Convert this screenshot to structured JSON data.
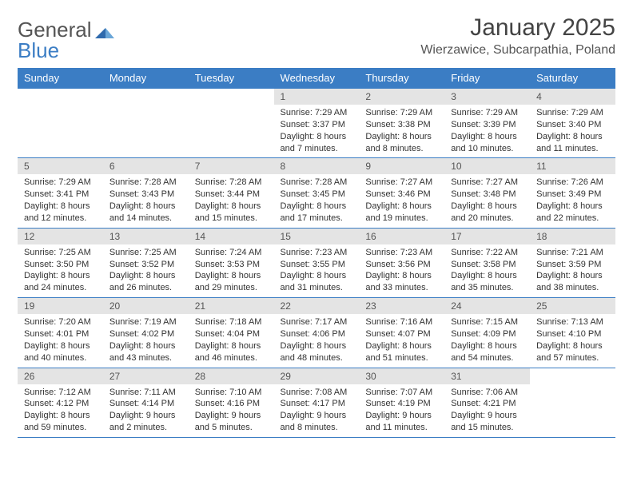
{
  "logo": {
    "text1": "General",
    "text2": "Blue"
  },
  "title": {
    "month": "January 2025",
    "location": "Wierzawice, Subcarpathia, Poland"
  },
  "colors": {
    "header_bg": "#3b7dc4",
    "header_text": "#ffffff",
    "daynum_bg": "#e4e4e4",
    "text": "#333333",
    "rule": "#3b7dc4",
    "page_bg": "#ffffff"
  },
  "calendar": {
    "columns": [
      "Sunday",
      "Monday",
      "Tuesday",
      "Wednesday",
      "Thursday",
      "Friday",
      "Saturday"
    ],
    "weeks": [
      [
        null,
        null,
        null,
        {
          "n": "1",
          "sunrise": "7:29 AM",
          "sunset": "3:37 PM",
          "daylight": "8 hours and 7 minutes."
        },
        {
          "n": "2",
          "sunrise": "7:29 AM",
          "sunset": "3:38 PM",
          "daylight": "8 hours and 8 minutes."
        },
        {
          "n": "3",
          "sunrise": "7:29 AM",
          "sunset": "3:39 PM",
          "daylight": "8 hours and 10 minutes."
        },
        {
          "n": "4",
          "sunrise": "7:29 AM",
          "sunset": "3:40 PM",
          "daylight": "8 hours and 11 minutes."
        }
      ],
      [
        {
          "n": "5",
          "sunrise": "7:29 AM",
          "sunset": "3:41 PM",
          "daylight": "8 hours and 12 minutes."
        },
        {
          "n": "6",
          "sunrise": "7:28 AM",
          "sunset": "3:43 PM",
          "daylight": "8 hours and 14 minutes."
        },
        {
          "n": "7",
          "sunrise": "7:28 AM",
          "sunset": "3:44 PM",
          "daylight": "8 hours and 15 minutes."
        },
        {
          "n": "8",
          "sunrise": "7:28 AM",
          "sunset": "3:45 PM",
          "daylight": "8 hours and 17 minutes."
        },
        {
          "n": "9",
          "sunrise": "7:27 AM",
          "sunset": "3:46 PM",
          "daylight": "8 hours and 19 minutes."
        },
        {
          "n": "10",
          "sunrise": "7:27 AM",
          "sunset": "3:48 PM",
          "daylight": "8 hours and 20 minutes."
        },
        {
          "n": "11",
          "sunrise": "7:26 AM",
          "sunset": "3:49 PM",
          "daylight": "8 hours and 22 minutes."
        }
      ],
      [
        {
          "n": "12",
          "sunrise": "7:25 AM",
          "sunset": "3:50 PM",
          "daylight": "8 hours and 24 minutes."
        },
        {
          "n": "13",
          "sunrise": "7:25 AM",
          "sunset": "3:52 PM",
          "daylight": "8 hours and 26 minutes."
        },
        {
          "n": "14",
          "sunrise": "7:24 AM",
          "sunset": "3:53 PM",
          "daylight": "8 hours and 29 minutes."
        },
        {
          "n": "15",
          "sunrise": "7:23 AM",
          "sunset": "3:55 PM",
          "daylight": "8 hours and 31 minutes."
        },
        {
          "n": "16",
          "sunrise": "7:23 AM",
          "sunset": "3:56 PM",
          "daylight": "8 hours and 33 minutes."
        },
        {
          "n": "17",
          "sunrise": "7:22 AM",
          "sunset": "3:58 PM",
          "daylight": "8 hours and 35 minutes."
        },
        {
          "n": "18",
          "sunrise": "7:21 AM",
          "sunset": "3:59 PM",
          "daylight": "8 hours and 38 minutes."
        }
      ],
      [
        {
          "n": "19",
          "sunrise": "7:20 AM",
          "sunset": "4:01 PM",
          "daylight": "8 hours and 40 minutes."
        },
        {
          "n": "20",
          "sunrise": "7:19 AM",
          "sunset": "4:02 PM",
          "daylight": "8 hours and 43 minutes."
        },
        {
          "n": "21",
          "sunrise": "7:18 AM",
          "sunset": "4:04 PM",
          "daylight": "8 hours and 46 minutes."
        },
        {
          "n": "22",
          "sunrise": "7:17 AM",
          "sunset": "4:06 PM",
          "daylight": "8 hours and 48 minutes."
        },
        {
          "n": "23",
          "sunrise": "7:16 AM",
          "sunset": "4:07 PM",
          "daylight": "8 hours and 51 minutes."
        },
        {
          "n": "24",
          "sunrise": "7:15 AM",
          "sunset": "4:09 PM",
          "daylight": "8 hours and 54 minutes."
        },
        {
          "n": "25",
          "sunrise": "7:13 AM",
          "sunset": "4:10 PM",
          "daylight": "8 hours and 57 minutes."
        }
      ],
      [
        {
          "n": "26",
          "sunrise": "7:12 AM",
          "sunset": "4:12 PM",
          "daylight": "8 hours and 59 minutes."
        },
        {
          "n": "27",
          "sunrise": "7:11 AM",
          "sunset": "4:14 PM",
          "daylight": "9 hours and 2 minutes."
        },
        {
          "n": "28",
          "sunrise": "7:10 AM",
          "sunset": "4:16 PM",
          "daylight": "9 hours and 5 minutes."
        },
        {
          "n": "29",
          "sunrise": "7:08 AM",
          "sunset": "4:17 PM",
          "daylight": "9 hours and 8 minutes."
        },
        {
          "n": "30",
          "sunrise": "7:07 AM",
          "sunset": "4:19 PM",
          "daylight": "9 hours and 11 minutes."
        },
        {
          "n": "31",
          "sunrise": "7:06 AM",
          "sunset": "4:21 PM",
          "daylight": "9 hours and 15 minutes."
        },
        null
      ]
    ],
    "labels": {
      "sunrise": "Sunrise:",
      "sunset": "Sunset:",
      "daylight": "Daylight:"
    }
  }
}
